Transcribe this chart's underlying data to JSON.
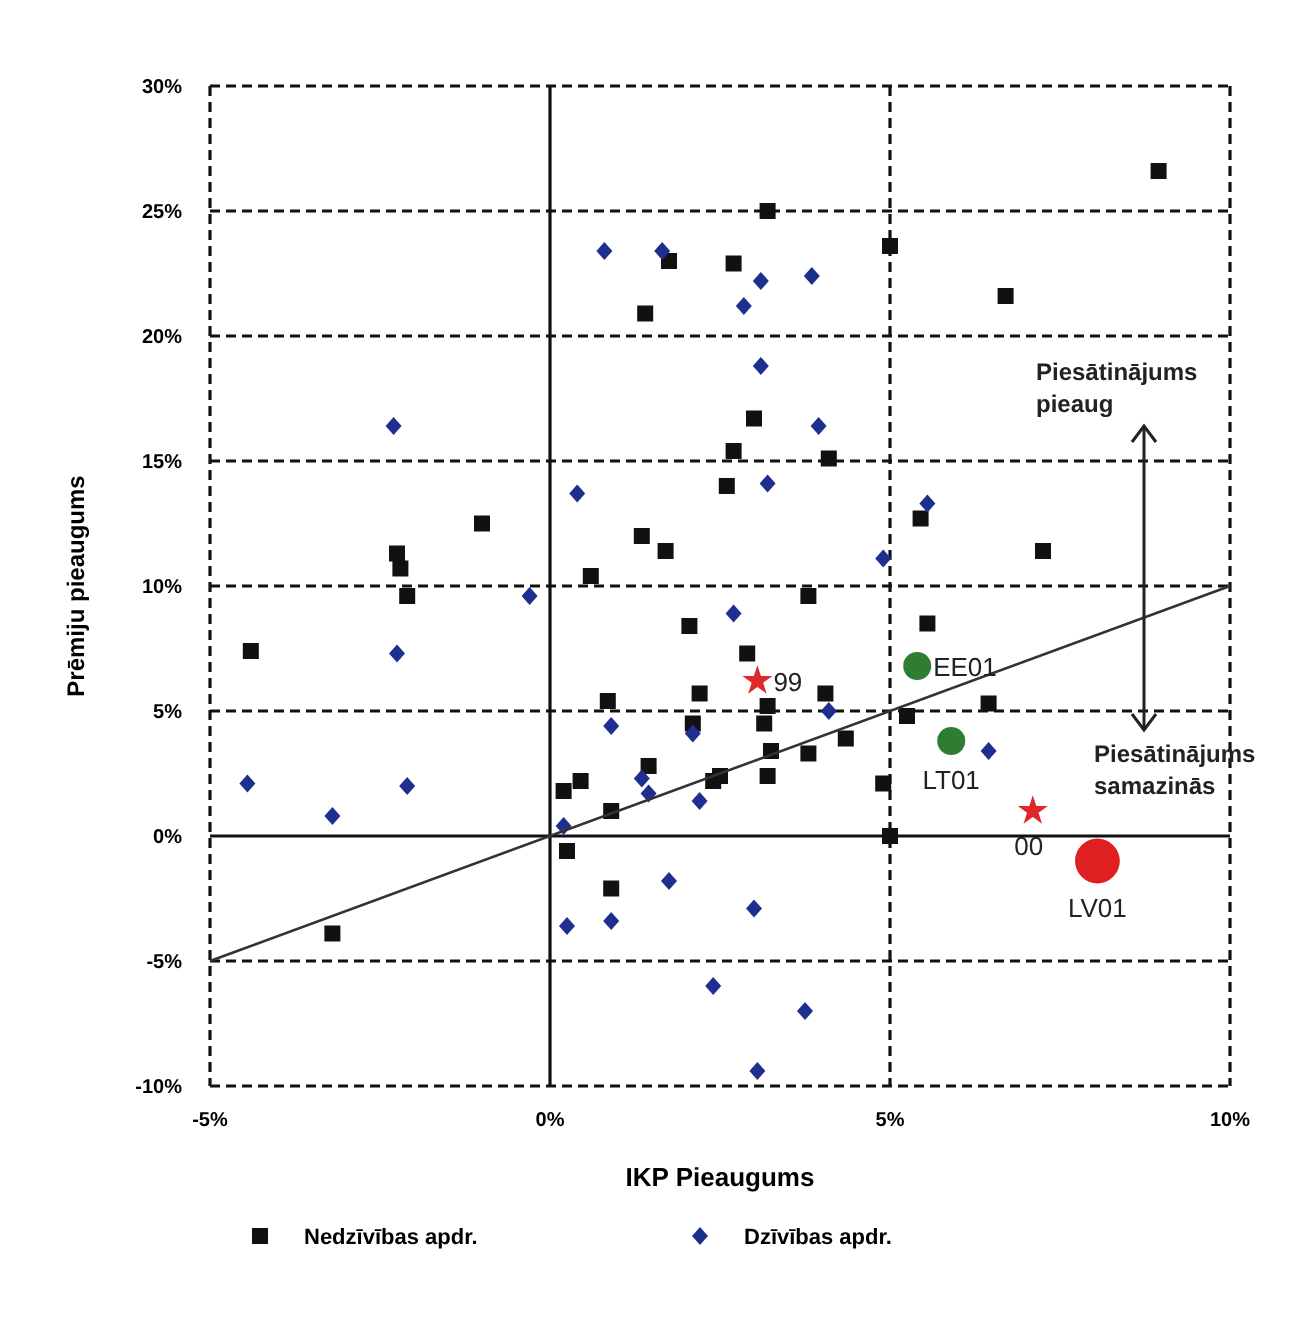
{
  "chart_data": {
    "type": "scatter",
    "xlabel": "IKP Pieaugums",
    "ylabel": "Prēmiju pieaugums",
    "xlim": [
      -5,
      10
    ],
    "ylim": [
      -10,
      30
    ],
    "xticks": [
      {
        "value": -5,
        "label": "-5%"
      },
      {
        "value": 0,
        "label": "0%"
      },
      {
        "value": 5,
        "label": "5%"
      },
      {
        "value": 10,
        "label": "10%"
      }
    ],
    "yticks": [
      {
        "value": -10,
        "label": "-10%"
      },
      {
        "value": -5,
        "label": "-5%"
      },
      {
        "value": 0,
        "label": "0%"
      },
      {
        "value": 5,
        "label": "5%"
      },
      {
        "value": 10,
        "label": "10%"
      },
      {
        "value": 15,
        "label": "15%"
      },
      {
        "value": 20,
        "label": "20%"
      },
      {
        "value": 25,
        "label": "25%"
      },
      {
        "value": 30,
        "label": "30%"
      }
    ],
    "grid": true,
    "legend": "bottom",
    "series": [
      {
        "name": "Nedzīvības apdr.",
        "color": "#111111",
        "marker": "square",
        "x": [
          1.75,
          1.4,
          -1.0,
          -2.25,
          -2.2,
          1.35,
          1.7,
          0.6,
          8.95,
          3.2,
          5.0,
          2.7,
          6.7,
          3.0,
          2.7,
          4.1,
          2.6,
          5.45,
          7.25,
          3.8,
          -2.1,
          -4.4,
          -3.2,
          2.05,
          2.2,
          0.85,
          2.1,
          1.45,
          0.45,
          0.2,
          0.9,
          0.25,
          0.9,
          2.4,
          2.9,
          5.55,
          3.2,
          3.15,
          4.05,
          6.45,
          5.25,
          4.35,
          3.25,
          3.8,
          2.5,
          3.2,
          4.9,
          5.0
        ],
        "values": [
          23.0,
          20.9,
          12.5,
          11.3,
          10.7,
          12.0,
          11.4,
          10.4,
          26.6,
          25.0,
          23.6,
          22.9,
          21.6,
          16.7,
          15.4,
          15.1,
          14.0,
          12.7,
          11.4,
          9.6,
          9.6,
          7.4,
          -3.9,
          8.4,
          5.7,
          5.4,
          4.5,
          2.8,
          2.2,
          1.8,
          1.0,
          -0.6,
          -2.1,
          2.2,
          7.3,
          8.5,
          5.2,
          4.5,
          5.7,
          5.3,
          4.8,
          3.9,
          3.4,
          3.3,
          2.4,
          2.4,
          2.1,
          0.0
        ]
      },
      {
        "name": "Dzīvības apdr.",
        "color": "#1f2f8f",
        "marker": "diamond",
        "x": [
          0.8,
          1.65,
          -2.3,
          0.4,
          3.1,
          3.85,
          2.85,
          3.1,
          3.95,
          3.2,
          5.55,
          4.9,
          -0.3,
          -2.25,
          -4.45,
          -2.1,
          -3.2,
          0.9,
          0.2,
          0.25,
          0.9,
          1.75,
          1.35,
          1.45,
          2.2,
          2.1,
          2.4,
          2.7,
          4.1,
          6.45,
          3.0,
          3.75,
          3.05
        ],
        "values": [
          23.4,
          23.4,
          16.4,
          13.7,
          22.2,
          22.4,
          21.2,
          18.8,
          16.4,
          14.1,
          13.3,
          11.1,
          9.6,
          7.3,
          2.1,
          2.0,
          0.8,
          4.4,
          0.4,
          -3.6,
          -3.4,
          -1.8,
          2.3,
          1.7,
          1.4,
          4.1,
          -6.0,
          8.9,
          5.0,
          3.4,
          -2.9,
          -7.0,
          -9.4
        ]
      },
      {
        "color": "#e0282a",
        "marker": "star",
        "x": [
          3.05,
          7.1
        ],
        "values": [
          6.2,
          1.0
        ]
      },
      {
        "color": "#2e7d32",
        "marker": "circle",
        "x": [
          5.4,
          5.9
        ],
        "values": [
          6.8,
          3.8
        ]
      },
      {
        "color": "#e02020",
        "marker": "circle",
        "x": [
          8.05
        ],
        "values": [
          -1.0
        ]
      },
      {
        "type": "line",
        "color": "#333333",
        "marker": "none",
        "x": [
          -5,
          10
        ],
        "values": [
          -5,
          10
        ]
      }
    ],
    "annotations": [
      {
        "text": "99",
        "x": 3.05,
        "y": 6.2
      },
      {
        "text": "00",
        "x": 7.1,
        "y": 1.0
      },
      {
        "text": "EE01",
        "x": 5.4,
        "y": 6.8
      },
      {
        "text": "LT01",
        "x": 5.9,
        "y": 3.8
      },
      {
        "text": "LV01",
        "x": 8.05,
        "y": -1.0
      },
      "Piesātinājums pieaug",
      "Piesātinājums samazinās"
    ]
  }
}
